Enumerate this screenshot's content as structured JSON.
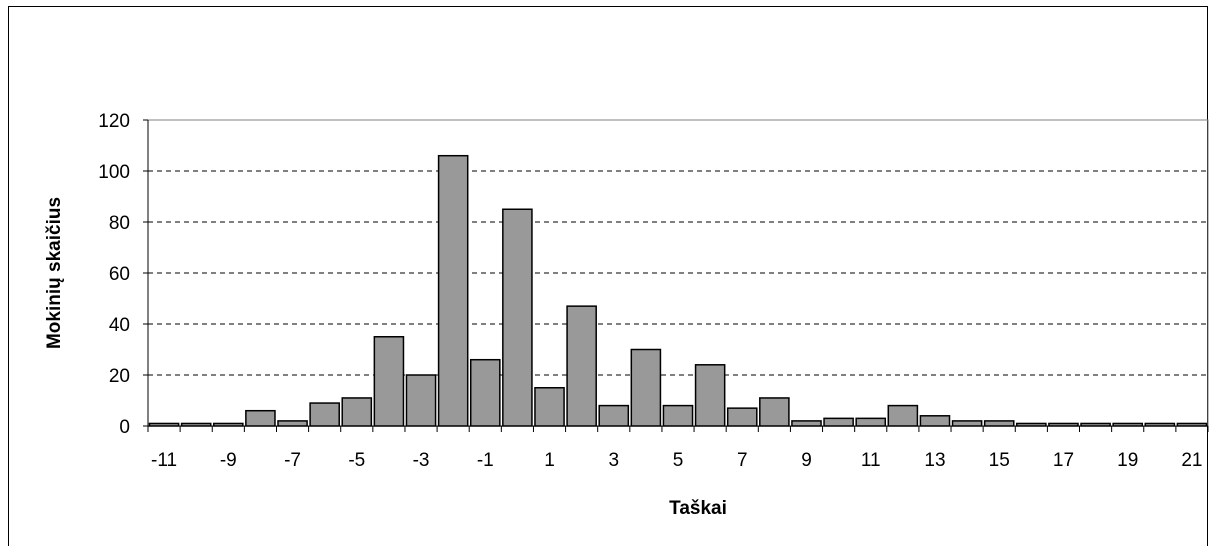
{
  "chart_data": {
    "type": "bar",
    "xlabel": "Taškai",
    "ylabel": "Mokinių skaičius",
    "ylim": [
      0,
      120
    ],
    "yticks": [
      0,
      20,
      40,
      60,
      80,
      100,
      120
    ],
    "xtick_labels": [
      "-11",
      "-9",
      "-7",
      "-5",
      "-3",
      "-1",
      "1",
      "3",
      "5",
      "7",
      "9",
      "11",
      "13",
      "15",
      "17",
      "19",
      "21"
    ],
    "grid": "horizontal-dashed",
    "bar_color": "#999999",
    "categories": [
      -11,
      -10,
      -9,
      -8,
      -7,
      -6,
      -5,
      -4,
      -3,
      -2,
      -1,
      0,
      1,
      2,
      3,
      4,
      5,
      6,
      7,
      8,
      9,
      10,
      11,
      12,
      13,
      14,
      15,
      16,
      17,
      18,
      19,
      20,
      21
    ],
    "values": [
      1,
      1,
      1,
      6,
      2,
      9,
      11,
      35,
      20,
      106,
      26,
      85,
      15,
      47,
      8,
      30,
      8,
      24,
      7,
      11,
      2,
      3,
      3,
      8,
      4,
      2,
      2,
      1,
      1,
      1,
      1,
      1,
      1
    ]
  }
}
